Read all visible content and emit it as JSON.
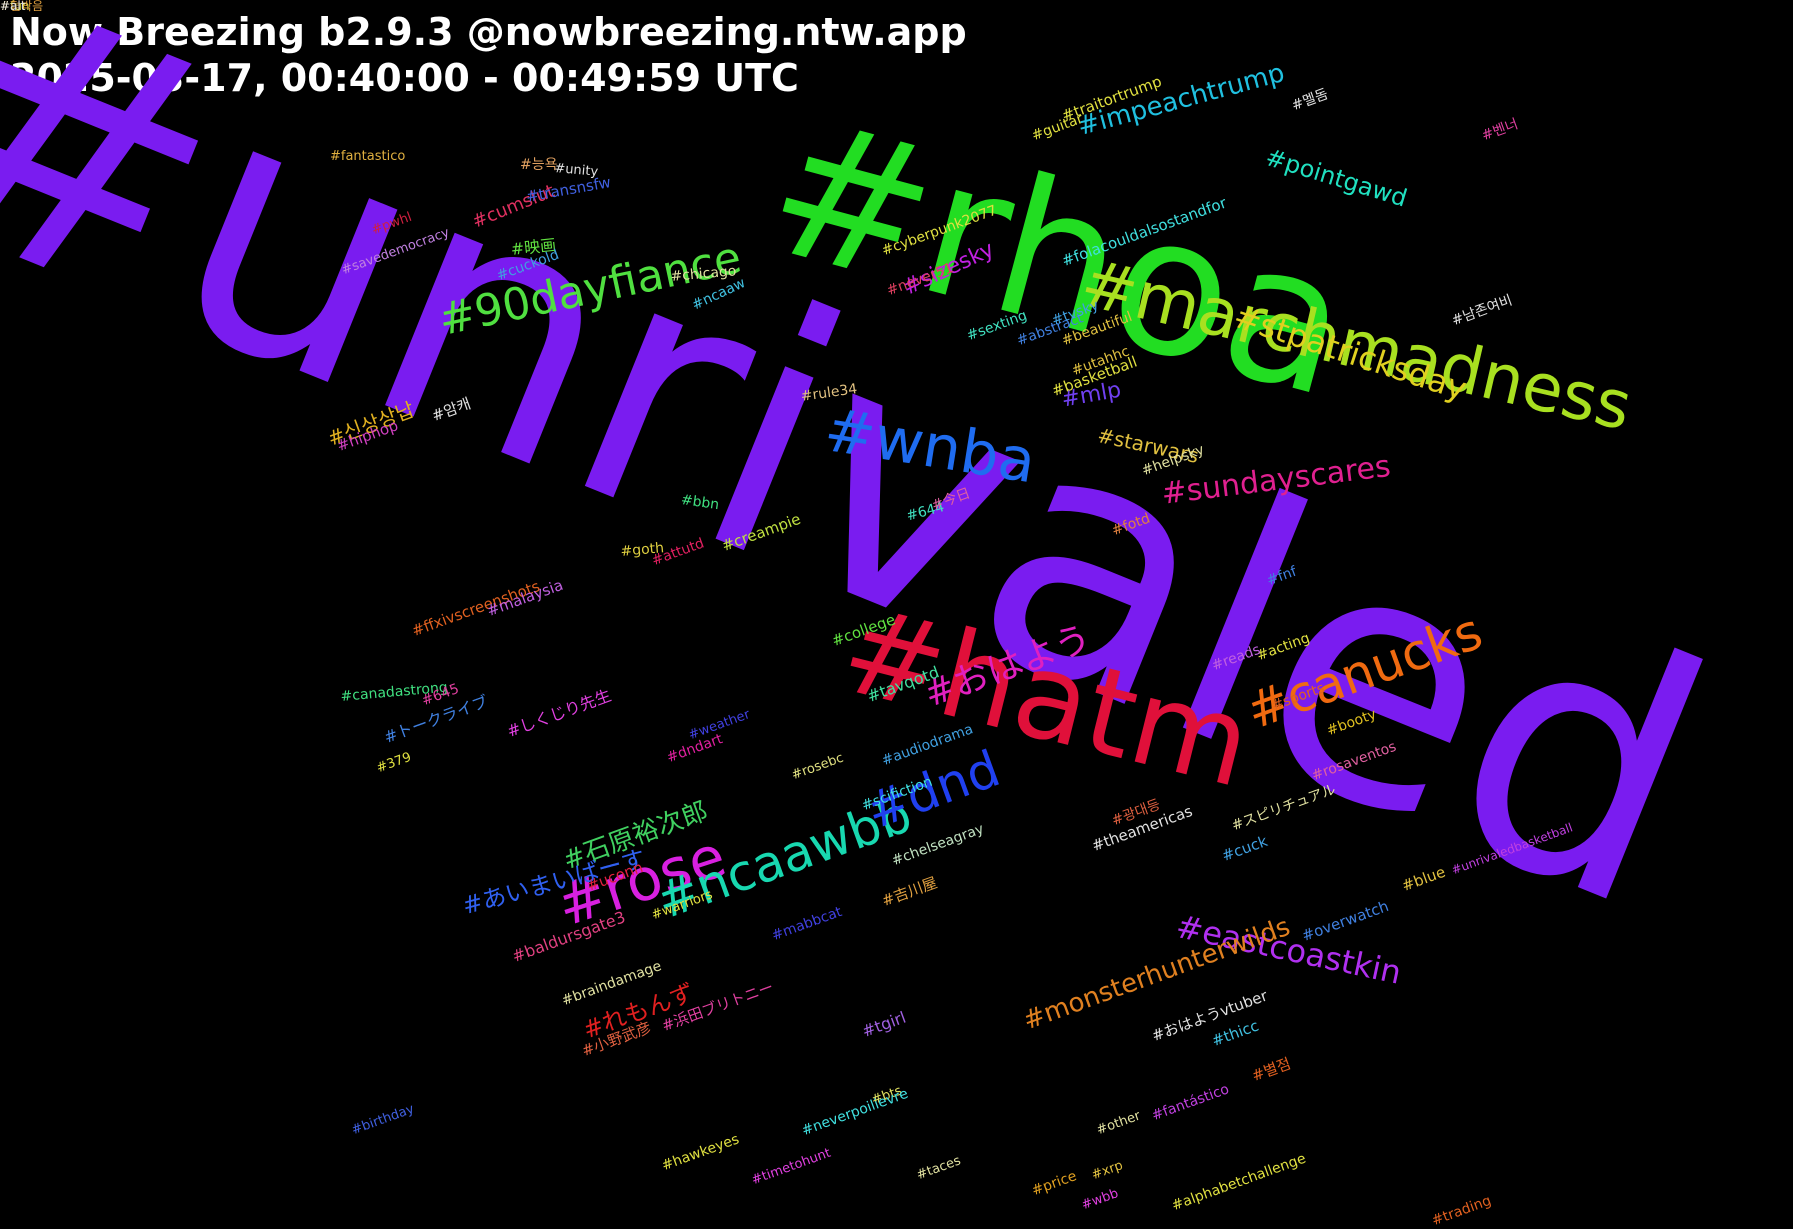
{
  "header": {
    "title": "Now Breezing b2.9.3 @nowbreezing.ntw.app",
    "range": "2025-03-17, 00:40:00 - 00:49:59 UTC"
  },
  "tags": [
    {
      "text": "#unrivaled",
      "color": "#7a1cf0"
    },
    {
      "text": "#rhoa",
      "color": "#22dd22"
    },
    {
      "text": "#hatm",
      "color": "#e0103a"
    },
    {
      "text": "#marchmadness",
      "color": "#a8e020"
    },
    {
      "text": "#wnba",
      "color": "#1f6cf0"
    },
    {
      "text": "#90dayfiance",
      "color": "#50e040"
    },
    {
      "text": "#rose",
      "color": "#d820e0"
    },
    {
      "text": "#ncaawbb",
      "color": "#18d8b0"
    },
    {
      "text": "#canucks",
      "color": "#f06a10"
    },
    {
      "text": "#dnd",
      "color": "#2040f0"
    },
    {
      "text": "#stpatricksday",
      "color": "#e0d020"
    },
    {
      "text": "#sundayscares",
      "color": "#e02090"
    },
    {
      "text": "#おはよう",
      "color": "#e020c0"
    },
    {
      "text": "#eastcoastkin",
      "color": "#b030f0"
    },
    {
      "text": "#monsterhunterwilds",
      "color": "#e08020"
    },
    {
      "text": "#石原裕次郎",
      "color": "#40d060"
    },
    {
      "text": "#あいまいばーす",
      "color": "#3060f0"
    },
    {
      "text": "#れもんず",
      "color": "#e02020"
    },
    {
      "text": "#impeachtrump",
      "color": "#20c0e0"
    },
    {
      "text": "#pointgawd",
      "color": "#20e0c0"
    },
    {
      "text": "#sizesky",
      "color": "#c020e0"
    },
    {
      "text": "#starwars",
      "color": "#e0c040"
    },
    {
      "text": "#mlp",
      "color": "#7040f0"
    },
    {
      "text": "#신상상납",
      "color": "#e0b020"
    },
    {
      "text": "#fantastico",
      "color": "#e0b040"
    },
    {
      "text": "#능욕",
      "color": "#e0a060"
    },
    {
      "text": "#cumslut",
      "color": "#e03060"
    },
    {
      "text": "#映画",
      "color": "#60e040"
    },
    {
      "text": "#pwhl",
      "color": "#d02040"
    },
    {
      "text": "#cuckold",
      "color": "#40a0e0"
    },
    {
      "text": "#savedemocracy",
      "color": "#c080e0"
    },
    {
      "text": "#chicago",
      "color": "#e0e0a0"
    },
    {
      "text": "#ncaaw",
      "color": "#40c0e0"
    },
    {
      "text": "#unity",
      "color": "#e0e0e0"
    },
    {
      "text": "#transnsfw",
      "color": "#4060e0"
    },
    {
      "text": "#암캐",
      "color": "#e0e0e0"
    },
    {
      "text": "#hiphop",
      "color": "#d040c0"
    },
    {
      "text": "#rule34",
      "color": "#e0c080"
    },
    {
      "text": "#bbn",
      "color": "#40e080"
    },
    {
      "text": "#attutd",
      "color": "#e02060"
    },
    {
      "text": "#creampie",
      "color": "#c0e040"
    },
    {
      "text": "#goth",
      "color": "#e0d040"
    },
    {
      "text": "#644",
      "color": "#40e0c0"
    },
    {
      "text": "#今日",
      "color": "#e060a0"
    },
    {
      "text": "#ffxivscreenshots",
      "color": "#e06020"
    },
    {
      "text": "#malaysia",
      "color": "#c060e0"
    },
    {
      "text": "#college",
      "color": "#60e040"
    },
    {
      "text": "#tavqotd",
      "color": "#40e0a0"
    },
    {
      "text": "#canadastrong",
      "color": "#40e080"
    },
    {
      "text": "#645",
      "color": "#e040a0"
    },
    {
      "text": "#しくじり先生",
      "color": "#e040e0"
    },
    {
      "text": "#トークライブ",
      "color": "#4080e0"
    },
    {
      "text": "#weather",
      "color": "#4040e0"
    },
    {
      "text": "#379",
      "color": "#e0e040"
    },
    {
      "text": "#dndart",
      "color": "#e020a0"
    },
    {
      "text": "#audiodrama",
      "color": "#40a0e0"
    },
    {
      "text": "#rosebc",
      "color": "#e0e080"
    },
    {
      "text": "#scifiction",
      "color": "#40e0e0"
    },
    {
      "text": "#chelseagray",
      "color": "#c0e0c0"
    },
    {
      "text": "#吉川屋",
      "color": "#e0a040"
    },
    {
      "text": "#uconn",
      "color": "#e02040"
    },
    {
      "text": "#warriors",
      "color": "#e0e040"
    },
    {
      "text": "#baldursgate3",
      "color": "#e04080"
    },
    {
      "text": "#mabbcat",
      "color": "#4040e0"
    },
    {
      "text": "#braindamage",
      "color": "#e0e0a0"
    },
    {
      "text": "#浜田ブリトニー",
      "color": "#e040a0"
    },
    {
      "text": "#小野武彦",
      "color": "#e06040"
    },
    {
      "text": "#tgirl",
      "color": "#a060e0"
    },
    {
      "text": "#birthday",
      "color": "#4060e0"
    },
    {
      "text": "#bts",
      "color": "#e0e060"
    },
    {
      "text": "#neverpoilievre",
      "color": "#40e0e0"
    },
    {
      "text": "#hawkeyes",
      "color": "#e0e040"
    },
    {
      "text": "#timetohunt",
      "color": "#e040e0"
    },
    {
      "text": "#taces",
      "color": "#e0e0a0"
    },
    {
      "text": "#price",
      "color": "#e0a020"
    },
    {
      "text": "#wbb",
      "color": "#e040e0"
    },
    {
      "text": "#alphabetchallenge",
      "color": "#e0e040"
    },
    {
      "text": "#xrp",
      "color": "#e0c040"
    },
    {
      "text": "#other",
      "color": "#e0e0a0"
    },
    {
      "text": "#fantástico",
      "color": "#c040e0"
    },
    {
      "text": "#おはようvtuber",
      "color": "#e0e0e0"
    },
    {
      "text": "#별점",
      "color": "#e06020"
    },
    {
      "text": "#thicc",
      "color": "#40c0e0"
    },
    {
      "text": "#overwatch",
      "color": "#4080e0"
    },
    {
      "text": "#blue",
      "color": "#e0c040"
    },
    {
      "text": "#unrivaledbasketball",
      "color": "#c040e0"
    },
    {
      "text": "#cuck",
      "color": "#40a0e0"
    },
    {
      "text": "#スピリチュアル",
      "color": "#e0e0a0"
    },
    {
      "text": "#theamericas",
      "color": "#e0e0e0"
    },
    {
      "text": "#광대등",
      "color": "#e06040"
    },
    {
      "text": "#rosaventos",
      "color": "#e060a0"
    },
    {
      "text": "#booty",
      "color": "#e0c020"
    },
    {
      "text": "#sports",
      "color": "#e06020"
    },
    {
      "text": "#acting",
      "color": "#e0e040"
    },
    {
      "text": "#reads",
      "color": "#c060e0"
    },
    {
      "text": "#fnf",
      "color": "#4080e0"
    },
    {
      "text": "#fotd",
      "color": "#e08040"
    },
    {
      "text": "#helpsky",
      "color": "#e0e0a0"
    },
    {
      "text": "#basketball",
      "color": "#e0e040"
    },
    {
      "text": "#utahhc",
      "color": "#e0c040"
    },
    {
      "text": "#abstract",
      "color": "#4080e0"
    },
    {
      "text": "#sexting",
      "color": "#40e0c0"
    },
    {
      "text": "#never51",
      "color": "#e04060"
    },
    {
      "text": "#cyberpunk2077",
      "color": "#e0e040"
    },
    {
      "text": "#folacouldalsostandfor",
      "color": "#40e0e0"
    },
    {
      "text": "#beautiful",
      "color": "#e0c040"
    },
    {
      "text": "#tvsky",
      "color": "#40a0e0"
    },
    {
      "text": "#남존여비",
      "color": "#e0e0e0"
    },
    {
      "text": "#벤너",
      "color": "#e040a0"
    },
    {
      "text": "#멜돔",
      "color": "#e0e0e0"
    },
    {
      "text": "#traitortrump",
      "color": "#e0e040"
    },
    {
      "text": "#guitar",
      "color": "#e0e040"
    },
    {
      "text": "#trading",
      "color": "#e06020"
    },
    {
      "text": "#fun",
      "color": "#e0e040"
    },
    {
      "text": "#혐박음",
      "color": "#e0a040"
    },
    {
      "text": "#alt",
      "color": "#e0e0e0"
    }
  ]
}
